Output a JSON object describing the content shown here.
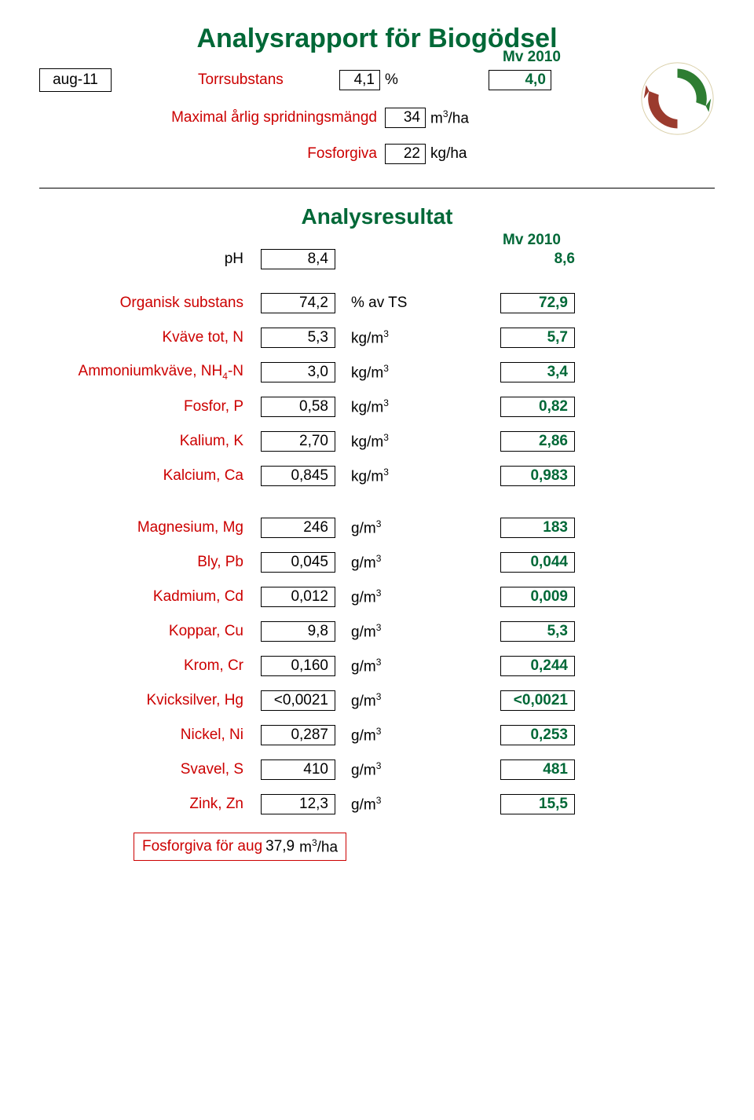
{
  "title": "Analysrapport för Biogödsel",
  "period": "aug-11",
  "mv_header1": "Mv 2010",
  "torrsubstans_label": "Torrsubstans",
  "torrsubstans_val": "4,1",
  "torrsubstans_unit": "%",
  "torrsubstans_mv": "4,0",
  "spridning_label": "Maximal årlig spridningsmängd",
  "spridning_val": "34",
  "spridning_unit_html": "m<span class='sup'>3</span>/ha",
  "fosforgiva_label": "Fosforgiva",
  "fosforgiva_val": "22",
  "fosforgiva_unit": "kg/ha",
  "section_title": "Analysresultat",
  "mv_header2": "Mv 2010",
  "ph_label": "pH",
  "ph_val": "8,4",
  "ph_mv": "8,6",
  "rows_a": [
    {
      "label": "Organisk substans",
      "val": "74,2",
      "unit_html": "% av TS",
      "mv": "72,9"
    },
    {
      "label": "Kväve tot, N",
      "val": "5,3",
      "unit_html": "kg/m<span class='sup'>3</span>",
      "mv": "5,7"
    },
    {
      "label_html": "Ammoniumkväve, NH<span class='sub4'>4</span>-N",
      "val": "3,0",
      "unit_html": "kg/m<span class='sup'>3</span>",
      "mv": "3,4"
    },
    {
      "label": "Fosfor, P",
      "val": "0,58",
      "unit_html": "kg/m<span class='sup'>3</span>",
      "mv": "0,82"
    },
    {
      "label": "Kalium, K",
      "val": "2,70",
      "unit_html": "kg/m<span class='sup'>3</span>",
      "mv": "2,86"
    },
    {
      "label": "Kalcium, Ca",
      "val": "0,845",
      "unit_html": "kg/m<span class='sup'>3</span>",
      "mv": "0,983"
    }
  ],
  "rows_b": [
    {
      "label": "Magnesium, Mg",
      "val": "246",
      "unit_html": "g/m<span class='sup'>3</span>",
      "mv": "183"
    },
    {
      "label": "Bly, Pb",
      "val": "0,045",
      "unit_html": "g/m<span class='sup'>3</span>",
      "mv": "0,044"
    },
    {
      "label": "Kadmium, Cd",
      "val": "0,012",
      "unit_html": "g/m<span class='sup'>3</span>",
      "mv": "0,009"
    },
    {
      "label": "Koppar, Cu",
      "val": "9,8",
      "unit_html": "g/m<span class='sup'>3</span>",
      "mv": "5,3"
    },
    {
      "label": "Krom, Cr",
      "val": "0,160",
      "unit_html": "g/m<span class='sup'>3</span>",
      "mv": "0,244"
    },
    {
      "label": "Kvicksilver, Hg",
      "val": "<0,0021",
      "unit_html": "g/m<span class='sup'>3</span>",
      "mv": "<0,0021"
    },
    {
      "label": "Nickel, Ni",
      "val": "0,287",
      "unit_html": "g/m<span class='sup'>3</span>",
      "mv": "0,253"
    },
    {
      "label": "Svavel, S",
      "val": "410",
      "unit_html": "g/m<span class='sup'>3</span>",
      "mv": "481"
    },
    {
      "label": "Zink, Zn",
      "val": "12,3",
      "unit_html": "g/m<span class='sup'>3</span>",
      "mv": "15,5"
    }
  ],
  "footer_label": "Fosforgiva för aug",
  "footer_val": "37,9",
  "footer_unit_html": "m<span class='sup'>3</span>/ha",
  "colors": {
    "title": "#006837",
    "label_red": "#cc0000",
    "mv_green": "#006837",
    "text": "#000000",
    "border": "#000000",
    "footer_border": "#cc0000",
    "background": "#ffffff"
  }
}
